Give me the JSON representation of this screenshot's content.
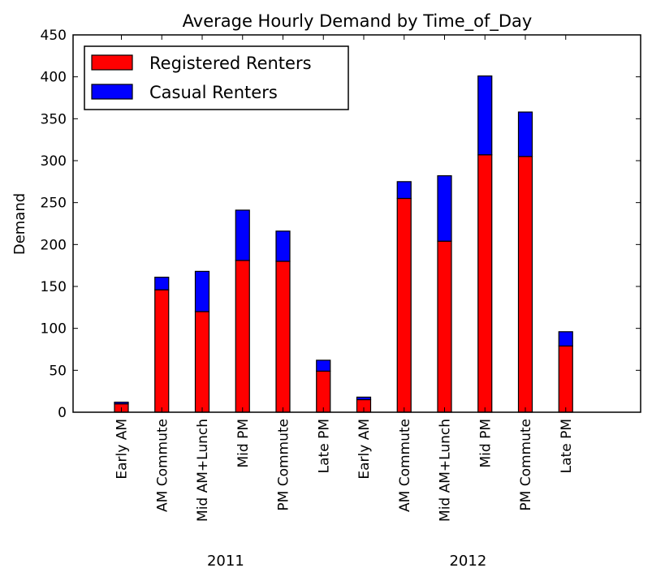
{
  "chart_data": {
    "type": "bar",
    "stacked": true,
    "title": "Average Hourly Demand by Time_of_Day",
    "xlabel": "",
    "ylabel": "Demand",
    "ylim": [
      0,
      450
    ],
    "yticks": [
      0,
      50,
      100,
      150,
      200,
      250,
      300,
      350,
      400,
      450
    ],
    "legend_position": "top-left",
    "categories": [
      "Early AM",
      "AM Commute",
      "Mid AM+Lunch",
      "Mid PM",
      "PM Commute",
      "Late PM",
      "Early AM",
      "AM Commute",
      "Mid AM+Lunch",
      "Mid PM",
      "PM Commute",
      "Late PM"
    ],
    "groups": [
      {
        "label": "2011",
        "from": 0,
        "to": 5
      },
      {
        "label": "2012",
        "from": 6,
        "to": 11
      }
    ],
    "series": [
      {
        "name": "Registered Renters",
        "color": "#ff0000",
        "values": [
          10,
          146,
          120,
          181,
          180,
          49,
          15,
          255,
          204,
          307,
          305,
          79
        ]
      },
      {
        "name": "Casual Renters",
        "color": "#0000ff",
        "values": [
          2,
          15,
          48,
          60,
          36,
          13,
          3,
          20,
          78,
          94,
          53,
          17
        ]
      }
    ]
  }
}
